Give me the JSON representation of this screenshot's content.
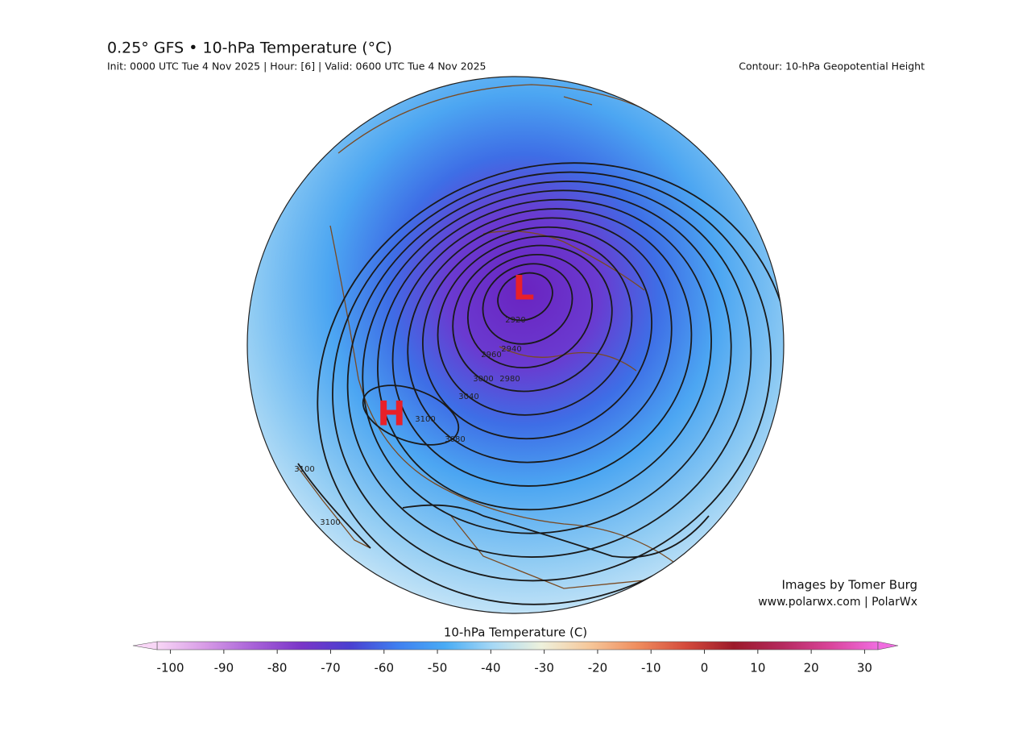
{
  "header": {
    "title": "0.25° GFS • 10-hPa Temperature (°C)",
    "subtitle": "Init: 0000 UTC Tue 4 Nov 2025 | Hour: [6] | Valid: 0600 UTC Tue 4 Nov 2025",
    "contour_note": "Contour: 10-hPa Geopotential Height"
  },
  "map": {
    "low_label": "L",
    "high_label": "H",
    "contour_labels": [
      2920,
      2940,
      2960,
      2980,
      3000,
      3040,
      3080,
      3100,
      3100,
      3100
    ]
  },
  "credits": {
    "line1": "Images by Tomer Burg",
    "line2": "www.polarwx.com | PolarWx"
  },
  "colorbar": {
    "title": "10-hPa Temperature (C)",
    "lim": [
      -102.5,
      32.5
    ],
    "ticks": [
      -100,
      -90,
      -80,
      -70,
      -60,
      -50,
      -40,
      -30,
      -20,
      -10,
      0,
      10,
      20,
      30
    ],
    "colors": [
      "#f8d6f6",
      "#d79be6",
      "#a862d8",
      "#7a35c8",
      "#4a3fd0",
      "#3f7ff0",
      "#49acf5",
      "#a8d9f5",
      "#eef1dc",
      "#f6c79a",
      "#ef8d5e",
      "#d44b3c",
      "#9c1a2a",
      "#b52a5e",
      "#d9449a",
      "#f06de0"
    ]
  }
}
